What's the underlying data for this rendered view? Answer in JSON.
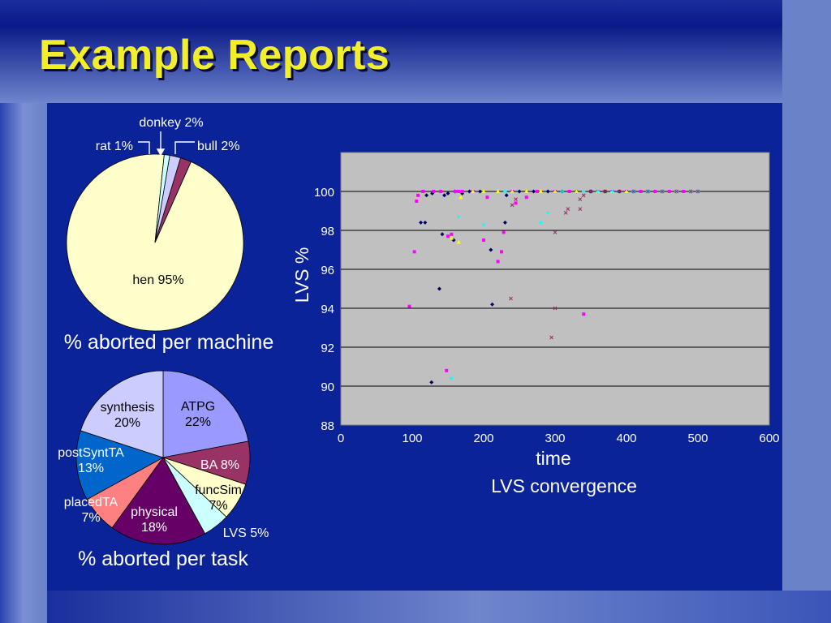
{
  "slide": {
    "title": "Example Reports"
  },
  "chart_data": [
    {
      "type": "pie",
      "title": "% aborted per machine",
      "slices": [
        {
          "label": "hen 95%",
          "value": 95,
          "color": "#ffffcc"
        },
        {
          "label": "bull 2%",
          "value": 2,
          "color": "#993366"
        },
        {
          "label": "donkey 2%",
          "value": 2,
          "color": "#ccccff"
        },
        {
          "label": "rat 1%",
          "value": 1,
          "color": "#ccffff"
        }
      ]
    },
    {
      "type": "pie",
      "title": "% aborted per task",
      "slices": [
        {
          "name": "ATPG",
          "pct": "22%",
          "value": 22,
          "color": "#9999ff"
        },
        {
          "name": "BA",
          "pct": "8%",
          "label": "BA 8%",
          "value": 8,
          "color": "#993366"
        },
        {
          "name": "funcSim",
          "pct": "7%",
          "value": 7,
          "color": "#ffffcc"
        },
        {
          "name": "LVS",
          "pct": "5%",
          "label": "LVS 5%",
          "value": 5,
          "color": "#ccffff"
        },
        {
          "name": "physical",
          "pct": "18%",
          "value": 18,
          "color": "#660066"
        },
        {
          "name": "placedTA",
          "pct": "7%",
          "value": 7,
          "color": "#ff8080"
        },
        {
          "name": "postSyntTA",
          "pct": "13%",
          "value": 13,
          "color": "#0066cc"
        },
        {
          "name": "synthesis",
          "pct": "20%",
          "value": 20,
          "color": "#ccccff"
        }
      ]
    },
    {
      "type": "scatter",
      "title": "LVS convergence",
      "xlabel": "time",
      "ylabel": "LVS %",
      "xlim": [
        0,
        600
      ],
      "ylim": [
        88,
        102
      ],
      "xticks": [
        0,
        100,
        200,
        300,
        400,
        500,
        600
      ],
      "yticks": [
        88,
        90,
        92,
        94,
        96,
        98,
        100
      ],
      "grid": "horizontal",
      "legend": "none",
      "series": [
        {
          "marker": "diamond",
          "color": "#000066",
          "points": [
            [
              112,
              98.4
            ],
            [
              118,
              98.4
            ],
            [
              120,
              99.8
            ],
            [
              127,
              90.2
            ],
            [
              128,
              99.9
            ],
            [
              138,
              95
            ],
            [
              142,
              97.8
            ],
            [
              145,
              99.8
            ],
            [
              150,
              99.9
            ],
            [
              158,
              97.5
            ],
            [
              160,
              100
            ],
            [
              170,
              99.9
            ],
            [
              180,
              100
            ],
            [
              195,
              100
            ],
            [
              210,
              97
            ],
            [
              212,
              94.2
            ],
            [
              230,
              98.4
            ],
            [
              232,
              99.8
            ],
            [
              250,
              100
            ],
            [
              270,
              100
            ],
            [
              290,
              100
            ],
            [
              310,
              100
            ],
            [
              330,
              100
            ],
            [
              350,
              100
            ],
            [
              370,
              100
            ],
            [
              390,
              100
            ],
            [
              410,
              100
            ],
            [
              430,
              100
            ],
            [
              450,
              100
            ],
            [
              470,
              100
            ],
            [
              490,
              100
            ],
            [
              500,
              100
            ]
          ]
        },
        {
          "marker": "square",
          "color": "#ff00ff",
          "points": [
            [
              96,
              94.1
            ],
            [
              103,
              96.9
            ],
            [
              106,
              99.5
            ],
            [
              108,
              99.8
            ],
            [
              115,
              100
            ],
            [
              130,
              100
            ],
            [
              140,
              100
            ],
            [
              148,
              90.8
            ],
            [
              150,
              97.7
            ],
            [
              155,
              97.8
            ],
            [
              160,
              100
            ],
            [
              165,
              100
            ],
            [
              170,
              100
            ],
            [
              185,
              100
            ],
            [
              200,
              97.5
            ],
            [
              205,
              99.7
            ],
            [
              220,
              96.4
            ],
            [
              225,
              96.9
            ],
            [
              228,
              97.9
            ],
            [
              240,
              100
            ],
            [
              245,
              99.4
            ],
            [
              260,
              99.7
            ],
            [
              275,
              100
            ],
            [
              300,
              100
            ],
            [
              320,
              100
            ],
            [
              340,
              93.7
            ],
            [
              360,
              100
            ],
            [
              380,
              100
            ],
            [
              400,
              100
            ],
            [
              420,
              100
            ],
            [
              440,
              100
            ],
            [
              460,
              100
            ],
            [
              480,
              100
            ],
            [
              500,
              100
            ]
          ]
        },
        {
          "marker": "triangle",
          "color": "#ffff00",
          "points": [
            [
              155,
              97.6
            ],
            [
              165,
              97.4
            ],
            [
              168,
              99.7
            ],
            [
              185,
              100
            ],
            [
              200,
              100
            ],
            [
              220,
              100
            ],
            [
              240,
              100
            ],
            [
              260,
              100
            ],
            [
              280,
              100
            ],
            [
              300,
              100
            ],
            [
              330,
              100
            ],
            [
              360,
              100
            ],
            [
              380,
              100
            ],
            [
              400,
              100
            ]
          ]
        },
        {
          "marker": "cross",
          "color": "#00ffff",
          "points": [
            [
              155,
              90.4
            ],
            [
              165,
              98.7
            ],
            [
              200,
              98.3
            ],
            [
              230,
              100
            ],
            [
              280,
              98.4
            ],
            [
              290,
              98.9
            ],
            [
              310,
              100
            ],
            [
              340,
              100
            ],
            [
              360,
              100
            ],
            [
              380,
              100
            ],
            [
              410,
              100
            ],
            [
              430,
              100
            ],
            [
              450,
              100
            ],
            [
              470,
              100
            ],
            [
              490,
              100
            ],
            [
              500,
              100
            ]
          ]
        },
        {
          "marker": "x",
          "color": "#993366",
          "points": [
            [
              238,
              94.5
            ],
            [
              240,
              99.3
            ],
            [
              245,
              99.6
            ],
            [
              295,
              92.5
            ],
            [
              300,
              94
            ],
            [
              300,
              97.9
            ],
            [
              315,
              98.9
            ],
            [
              318,
              99.1
            ],
            [
              335,
              99.1
            ],
            [
              335,
              99.6
            ],
            [
              340,
              99.8
            ],
            [
              350,
              100
            ],
            [
              370,
              100
            ],
            [
              390,
              100
            ],
            [
              410,
              100
            ],
            [
              430,
              100
            ],
            [
              450,
              100
            ],
            [
              470,
              100
            ],
            [
              490,
              100
            ],
            [
              500,
              100
            ]
          ]
        }
      ]
    }
  ]
}
